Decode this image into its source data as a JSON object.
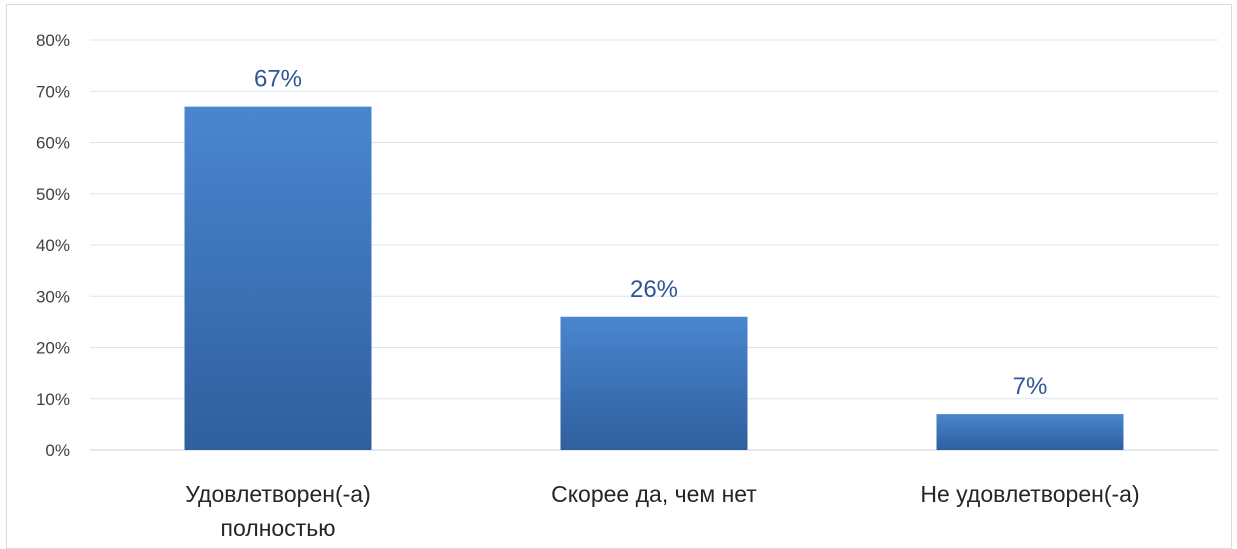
{
  "chart_data": {
    "type": "bar",
    "categories": [
      [
        "Удовлетворен(-а)",
        "полностью"
      ],
      [
        "Скорее да, чем нет"
      ],
      [
        "Не удовлетворен(-а)"
      ]
    ],
    "values": [
      67,
      26,
      7
    ],
    "data_labels": [
      "67%",
      "26%",
      "7%"
    ],
    "y_ticks": [
      "0%",
      "10%",
      "20%",
      "30%",
      "40%",
      "50%",
      "60%",
      "70%",
      "80%"
    ],
    "ylim": [
      0,
      80
    ],
    "grid": true,
    "legend": "none",
    "title": "",
    "xlabel": "",
    "ylabel": "",
    "colors": {
      "bar_top": "#4a86cf",
      "bar_bottom": "#2f5f9e",
      "grid": "#dce6f2",
      "data_label": "#2f5597"
    }
  }
}
